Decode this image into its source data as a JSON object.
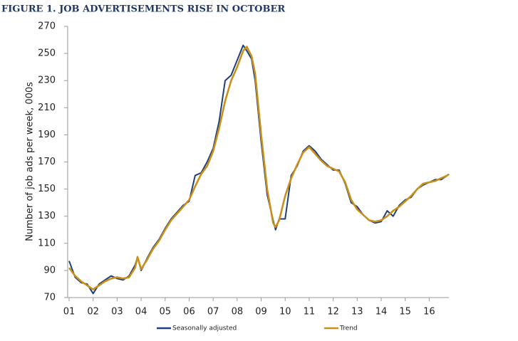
{
  "chart_data": {
    "type": "line",
    "title": "FIGURE 1. JOB ADVERTISEMENTS RISE IN OCTOBER",
    "y_label": "Number of job ads per week, 000s",
    "x": [
      1,
      1.25,
      1.5,
      1.75,
      2,
      2.25,
      2.5,
      2.75,
      3,
      3.25,
      3.5,
      3.75,
      3.85,
      4,
      4.25,
      4.5,
      4.75,
      5,
      5.25,
      5.5,
      5.75,
      6,
      6.25,
      6.5,
      6.75,
      7,
      7.25,
      7.5,
      7.75,
      8,
      8.25,
      8.4,
      8.6,
      8.75,
      9,
      9.25,
      9.5,
      9.6,
      9.75,
      10,
      10.25,
      10.5,
      10.75,
      11,
      11.25,
      11.5,
      11.75,
      12,
      12.25,
      12.5,
      12.75,
      13,
      13.25,
      13.5,
      13.75,
      14,
      14.25,
      14.5,
      14.75,
      15,
      15.25,
      15.5,
      15.75,
      16,
      16.25,
      16.5,
      16.75,
      16.82
    ],
    "series": [
      {
        "name": "Seasonally adjusted",
        "color": "#1f3f7a",
        "values": [
          97,
          85,
          81,
          80,
          73,
          80,
          83,
          86,
          84,
          83,
          86,
          94,
          100,
          90,
          99,
          107,
          113,
          121,
          128,
          133,
          138,
          141,
          160,
          162,
          170,
          180,
          200,
          230,
          234,
          245,
          256,
          252,
          246,
          230,
          185,
          146,
          127,
          120,
          128,
          128,
          160,
          167,
          178,
          182,
          178,
          172,
          168,
          164,
          164,
          154,
          140,
          137,
          131,
          127,
          125,
          126,
          134,
          130,
          138,
          142,
          144,
          150,
          153,
          155,
          157,
          157,
          160,
          161
        ]
      },
      {
        "name": "Trend",
        "color": "#c8901a",
        "values": [
          92,
          86,
          82,
          79,
          76,
          79,
          82,
          84,
          85,
          84,
          85,
          92,
          100,
          91,
          98,
          106,
          112,
          120,
          127,
          132,
          137,
          142,
          152,
          161,
          167,
          178,
          195,
          215,
          230,
          240,
          252,
          255,
          248,
          235,
          190,
          150,
          125,
          122,
          127,
          145,
          158,
          168,
          177,
          181,
          176,
          171,
          167,
          165,
          163,
          155,
          142,
          135,
          131,
          127,
          126,
          127,
          130,
          134,
          137,
          141,
          145,
          150,
          154,
          155,
          156,
          158,
          160,
          161
        ]
      }
    ],
    "xlim": [
      1,
      16.82
    ],
    "xticks": [
      {
        "value": 1,
        "label": "01"
      },
      {
        "value": 2,
        "label": "02"
      },
      {
        "value": 3,
        "label": "03"
      },
      {
        "value": 4,
        "label": "04"
      },
      {
        "value": 5,
        "label": "05"
      },
      {
        "value": 6,
        "label": "06"
      },
      {
        "value": 7,
        "label": "07"
      },
      {
        "value": 8,
        "label": "08"
      },
      {
        "value": 9,
        "label": "09"
      },
      {
        "value": 10,
        "label": "10"
      },
      {
        "value": 11,
        "label": "11"
      },
      {
        "value": 12,
        "label": "12"
      },
      {
        "value": 13,
        "label": "13"
      },
      {
        "value": 14,
        "label": "14"
      },
      {
        "value": 15,
        "label": "15"
      },
      {
        "value": 16,
        "label": "16"
      }
    ],
    "ylim": [
      70,
      270
    ],
    "yticks": [
      70,
      90,
      110,
      130,
      150,
      170,
      190,
      210,
      230,
      250,
      270
    ],
    "legend": "bottom"
  }
}
